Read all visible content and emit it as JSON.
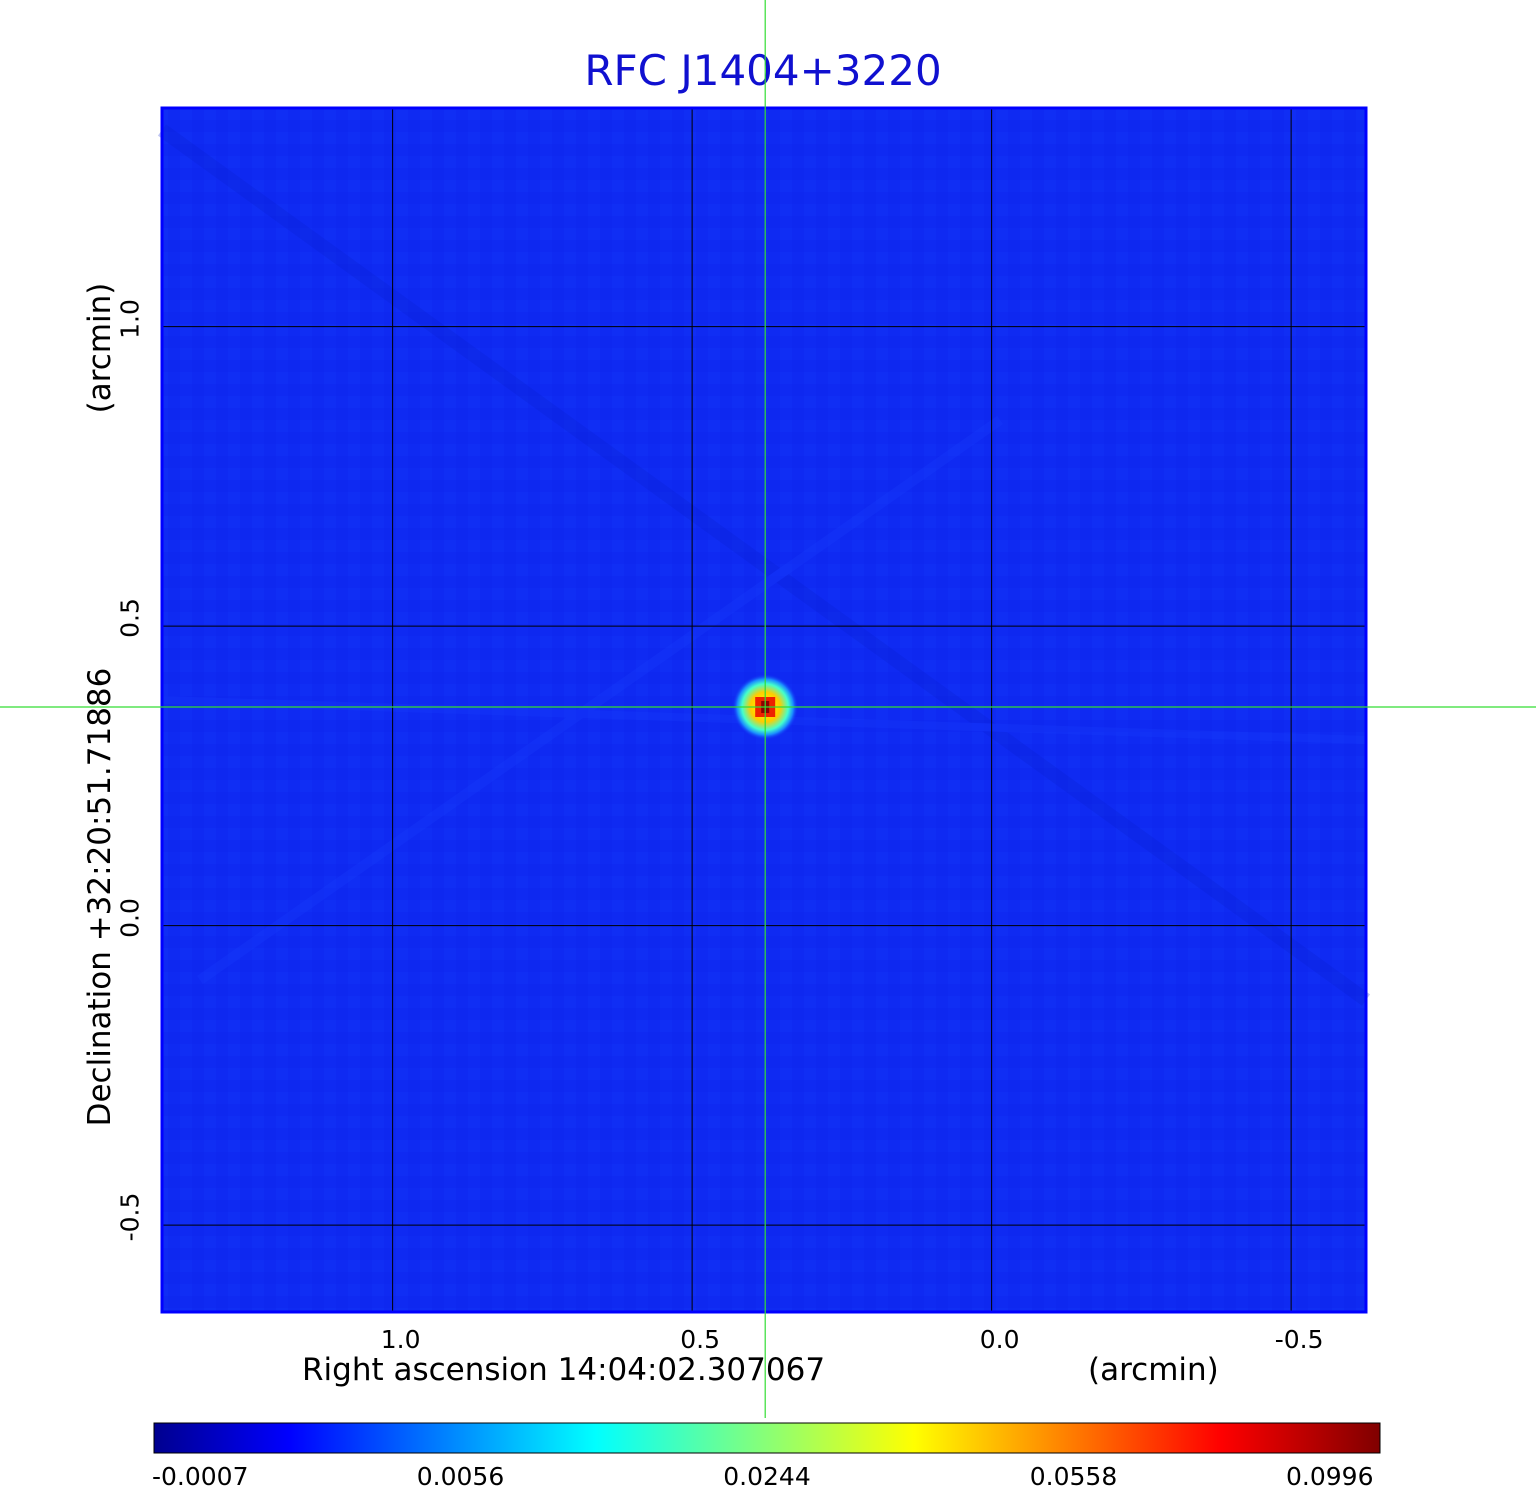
{
  "chart_data": {
    "type": "heatmap",
    "title": "RFC J1404+3220",
    "xlabel": "Right ascension  14:04:02.307067",
    "xunit": "(arcmin)",
    "ylabel": "Declination  +32:20:51.71886",
    "yunit": "(arcmin)",
    "x_range": [
      1.385,
      -0.625
    ],
    "y_range": [
      -0.645,
      1.365
    ],
    "x_ticks": [
      {
        "value": 1.0,
        "label": "1.0"
      },
      {
        "value": 0.5,
        "label": "0.5"
      },
      {
        "value": 0.0,
        "label": "0.0"
      },
      {
        "value": -0.5,
        "label": "-0.5"
      }
    ],
    "y_ticks": [
      {
        "value": 1.0,
        "label": "1.0"
      },
      {
        "value": 0.5,
        "label": "0.5"
      },
      {
        "value": 0.0,
        "label": "0.0"
      },
      {
        "value": -0.5,
        "label": "-0.5"
      }
    ],
    "grid": true,
    "source": {
      "x": 0.378,
      "y": 0.365,
      "peak": 0.0996
    },
    "crosshair": {
      "x": 0.378,
      "y": 0.365,
      "color": "#33dd33"
    },
    "colormap": "jet",
    "colorbar_ticks": [
      "-0.0007",
      "0.0056",
      "0.0244",
      "0.0558",
      "0.0996"
    ],
    "colorbar_range": [
      -0.0007,
      0.0996
    ]
  },
  "colors": {
    "title": "#1010d0",
    "frame": "#0000ff",
    "background_field": "#0f2af2",
    "crosshair": "#33dd33"
  }
}
